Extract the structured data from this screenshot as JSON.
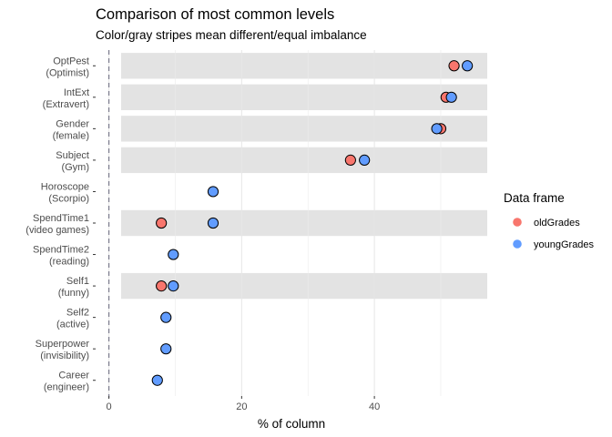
{
  "chart_data": {
    "type": "scatter",
    "title": "Comparison of most common levels",
    "subtitle": "Color/gray stripes mean different/equal imbalance",
    "xlabel": "% of column",
    "xlim": [
      -2,
      57
    ],
    "xticks": [
      0,
      20,
      40
    ],
    "reference_line_x": 0,
    "grid": true,
    "legend": {
      "title": "Data frame",
      "position": "right"
    },
    "series": [
      {
        "name": "oldGrades",
        "color": "#F8766D"
      },
      {
        "name": "youngGrades",
        "color": "#619CFF"
      }
    ],
    "categories": [
      {
        "label": [
          "OptPest",
          "(Optimist)"
        ],
        "striped": true,
        "values": {
          "oldGrades": 52.0,
          "youngGrades": 54.0
        }
      },
      {
        "label": [
          "IntExt",
          "(Extravert)"
        ],
        "striped": true,
        "values": {
          "oldGrades": 50.8,
          "youngGrades": 51.6
        }
      },
      {
        "label": [
          "Gender",
          "(female)"
        ],
        "striped": true,
        "values": {
          "oldGrades": 50.0,
          "youngGrades": 49.4
        }
      },
      {
        "label": [
          "Subject",
          "(Gym)"
        ],
        "striped": true,
        "values": {
          "oldGrades": 36.4,
          "youngGrades": 38.5
        }
      },
      {
        "label": [
          "Horoscope",
          "(Scorpio)"
        ],
        "striped": false,
        "values": {
          "oldGrades": null,
          "youngGrades": 15.7
        }
      },
      {
        "label": [
          "SpendTime1",
          "(video games)"
        ],
        "striped": true,
        "values": {
          "oldGrades": 7.9,
          "youngGrades": 15.7
        }
      },
      {
        "label": [
          "SpendTime2",
          "(reading)"
        ],
        "striped": false,
        "values": {
          "oldGrades": null,
          "youngGrades": 9.7
        }
      },
      {
        "label": [
          "Self1",
          "(funny)"
        ],
        "striped": true,
        "values": {
          "oldGrades": 7.9,
          "youngGrades": 9.7
        }
      },
      {
        "label": [
          "Self2",
          "(active)"
        ],
        "striped": false,
        "values": {
          "oldGrades": null,
          "youngGrades": 8.6
        }
      },
      {
        "label": [
          "Superpower",
          "(invisibility)"
        ],
        "striped": false,
        "values": {
          "oldGrades": null,
          "youngGrades": 8.6
        }
      },
      {
        "label": [
          "Career",
          "(engineer)"
        ],
        "striped": false,
        "values": {
          "oldGrades": null,
          "youngGrades": 7.3
        }
      }
    ]
  }
}
